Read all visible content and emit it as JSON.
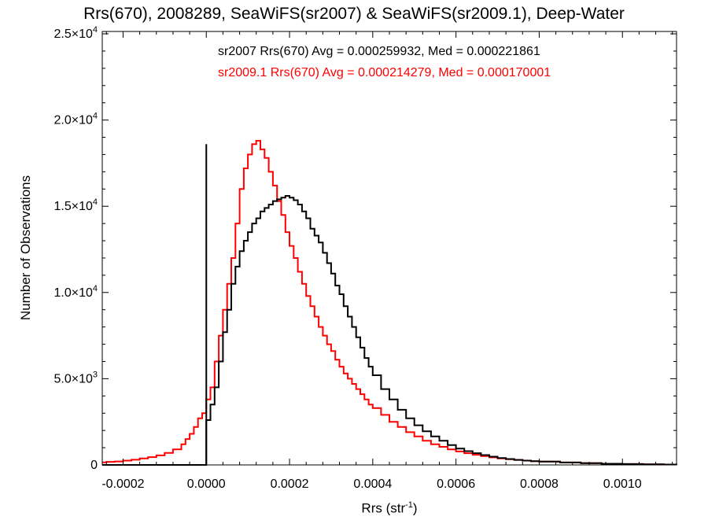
{
  "chart_data": {
    "type": "histogram",
    "title": "Rrs(670), 2008289, SeaWiFS(sr2007) & SeaWiFS(sr2009.1), Deep-Water",
    "xlabel": {
      "text": "Rrs (str",
      "sup": "-1",
      "tail": ")"
    },
    "ylabel": "Number of Observations",
    "xlim": [
      -0.00025,
      0.00113
    ],
    "ylim": [
      0,
      25000
    ],
    "x_ticks": [
      -0.0002,
      0.0,
      0.0002,
      0.0004,
      0.0006,
      0.0008,
      0.001
    ],
    "x_tick_labels": [
      "-0.0002",
      "0.0000",
      "0.0002",
      "0.0004",
      "0.0006",
      "0.0008",
      "0.0010"
    ],
    "y_ticks": [
      0,
      5000,
      10000,
      15000,
      20000,
      25000
    ],
    "y_tick_labels": [
      {
        "base": "0",
        "exp": ""
      },
      {
        "base": "5.0×10",
        "exp": "3"
      },
      {
        "base": "1.0×10",
        "exp": "4"
      },
      {
        "base": "1.5×10",
        "exp": "4"
      },
      {
        "base": "2.0×10",
        "exp": "4"
      },
      {
        "base": "2.5×10",
        "exp": "4"
      }
    ],
    "annotations": [
      {
        "text": "sr2007 Rrs(670) Avg = 0.000259932, Med = 0.000221861",
        "color": "#000000"
      },
      {
        "text": "sr2009.1 Rrs(670) Avg = 0.000214279, Med = 0.000170001",
        "color": "#ff0000"
      }
    ],
    "series": [
      {
        "color": "#000000",
        "spike": {
          "x": 0.0,
          "y": 18600
        },
        "points": [
          [
            -0.00025,
            0
          ],
          [
            -1e-05,
            0
          ],
          [
            0.0,
            2600
          ],
          [
            1e-05,
            3500
          ],
          [
            2e-05,
            4500
          ],
          [
            3e-05,
            6000
          ],
          [
            4e-05,
            7700
          ],
          [
            5e-05,
            9000
          ],
          [
            6e-05,
            10500
          ],
          [
            7e-05,
            11500
          ],
          [
            8e-05,
            12400
          ],
          [
            9e-05,
            13000
          ],
          [
            0.0001,
            13500
          ],
          [
            0.00011,
            14000
          ],
          [
            0.00012,
            14300
          ],
          [
            0.00013,
            14700
          ],
          [
            0.00014,
            14900
          ],
          [
            0.00015,
            15100
          ],
          [
            0.00016,
            15300
          ],
          [
            0.00017,
            15400
          ],
          [
            0.00018,
            15500
          ],
          [
            0.00019,
            15600
          ],
          [
            0.0002,
            15500
          ],
          [
            0.00021,
            15350
          ],
          [
            0.00022,
            15100
          ],
          [
            0.00023,
            14700
          ],
          [
            0.00024,
            14300
          ],
          [
            0.00025,
            13700
          ],
          [
            0.00026,
            13300
          ],
          [
            0.00027,
            12900
          ],
          [
            0.00028,
            12300
          ],
          [
            0.00029,
            11700
          ],
          [
            0.0003,
            11100
          ],
          [
            0.00031,
            10400
          ],
          [
            0.00032,
            9900
          ],
          [
            0.00033,
            9200
          ],
          [
            0.00034,
            8600
          ],
          [
            0.00035,
            8000
          ],
          [
            0.00036,
            7400
          ],
          [
            0.00037,
            6800
          ],
          [
            0.00038,
            6200
          ],
          [
            0.00039,
            5700
          ],
          [
            0.0004,
            5200
          ],
          [
            0.00042,
            4400
          ],
          [
            0.00044,
            3800
          ],
          [
            0.00046,
            3200
          ],
          [
            0.00048,
            2700
          ],
          [
            0.0005,
            2300
          ],
          [
            0.00052,
            1950
          ],
          [
            0.00054,
            1650
          ],
          [
            0.00056,
            1400
          ],
          [
            0.00058,
            1150
          ],
          [
            0.0006,
            950
          ],
          [
            0.00062,
            800
          ],
          [
            0.00064,
            680
          ],
          [
            0.00066,
            570
          ],
          [
            0.00068,
            480
          ],
          [
            0.0007,
            400
          ],
          [
            0.00072,
            340
          ],
          [
            0.00074,
            290
          ],
          [
            0.00076,
            250
          ],
          [
            0.00078,
            220
          ],
          [
            0.0008,
            190
          ],
          [
            0.00085,
            140
          ],
          [
            0.0009,
            100
          ],
          [
            0.00095,
            70
          ],
          [
            0.001,
            50
          ],
          [
            0.00105,
            35
          ],
          [
            0.0011,
            25
          ],
          [
            0.00113,
            20
          ]
        ]
      },
      {
        "color": "#ff0000",
        "points": [
          [
            -0.00025,
            150
          ],
          [
            -0.00024,
            180
          ],
          [
            -0.00022,
            200
          ],
          [
            -0.0002,
            250
          ],
          [
            -0.00018,
            300
          ],
          [
            -0.00016,
            380
          ],
          [
            -0.00014,
            450
          ],
          [
            -0.00012,
            550
          ],
          [
            -0.0001,
            700
          ],
          [
            -8e-05,
            900
          ],
          [
            -6e-05,
            1200
          ],
          [
            -5e-05,
            1500
          ],
          [
            -4e-05,
            1800
          ],
          [
            -3e-05,
            2200
          ],
          [
            -2e-05,
            2700
          ],
          [
            -1e-05,
            3000
          ],
          [
            0.0,
            3800
          ],
          [
            1e-05,
            4500
          ],
          [
            2e-05,
            6000
          ],
          [
            3e-05,
            7500
          ],
          [
            4e-05,
            9000
          ],
          [
            5e-05,
            10500
          ],
          [
            6e-05,
            12000
          ],
          [
            7e-05,
            14000
          ],
          [
            8e-05,
            16000
          ],
          [
            9e-05,
            17200
          ],
          [
            0.0001,
            18000
          ],
          [
            0.00011,
            18600
          ],
          [
            0.00012,
            18800
          ],
          [
            0.00013,
            18300
          ],
          [
            0.00014,
            17800
          ],
          [
            0.00015,
            17000
          ],
          [
            0.00016,
            16200
          ],
          [
            0.00017,
            15300
          ],
          [
            0.00018,
            14500
          ],
          [
            0.00019,
            13500
          ],
          [
            0.0002,
            12700
          ],
          [
            0.00021,
            12000
          ],
          [
            0.00022,
            11200
          ],
          [
            0.00023,
            10500
          ],
          [
            0.00024,
            9800
          ],
          [
            0.00025,
            9200
          ],
          [
            0.00026,
            8600
          ],
          [
            0.00027,
            8000
          ],
          [
            0.00028,
            7500
          ],
          [
            0.00029,
            7000
          ],
          [
            0.0003,
            6600
          ],
          [
            0.00031,
            6100
          ],
          [
            0.00032,
            5700
          ],
          [
            0.00033,
            5300
          ],
          [
            0.00034,
            5000
          ],
          [
            0.00035,
            4700
          ],
          [
            0.00036,
            4400
          ],
          [
            0.00037,
            4100
          ],
          [
            0.00038,
            3800
          ],
          [
            0.00039,
            3500
          ],
          [
            0.0004,
            3300
          ],
          [
            0.00042,
            2900
          ],
          [
            0.00044,
            2500
          ],
          [
            0.00046,
            2200
          ],
          [
            0.00048,
            1900
          ],
          [
            0.0005,
            1650
          ],
          [
            0.00052,
            1400
          ],
          [
            0.00054,
            1200
          ],
          [
            0.00056,
            1050
          ],
          [
            0.00058,
            900
          ],
          [
            0.0006,
            780
          ],
          [
            0.00062,
            680
          ],
          [
            0.00064,
            590
          ],
          [
            0.00066,
            510
          ],
          [
            0.00068,
            440
          ],
          [
            0.0007,
            380
          ],
          [
            0.00072,
            330
          ],
          [
            0.00074,
            290
          ],
          [
            0.00076,
            250
          ],
          [
            0.00078,
            220
          ],
          [
            0.0008,
            190
          ],
          [
            0.00085,
            140
          ],
          [
            0.0009,
            100
          ],
          [
            0.00095,
            70
          ],
          [
            0.001,
            50
          ],
          [
            0.00105,
            35
          ],
          [
            0.0011,
            25
          ],
          [
            0.00113,
            20
          ]
        ]
      }
    ]
  }
}
